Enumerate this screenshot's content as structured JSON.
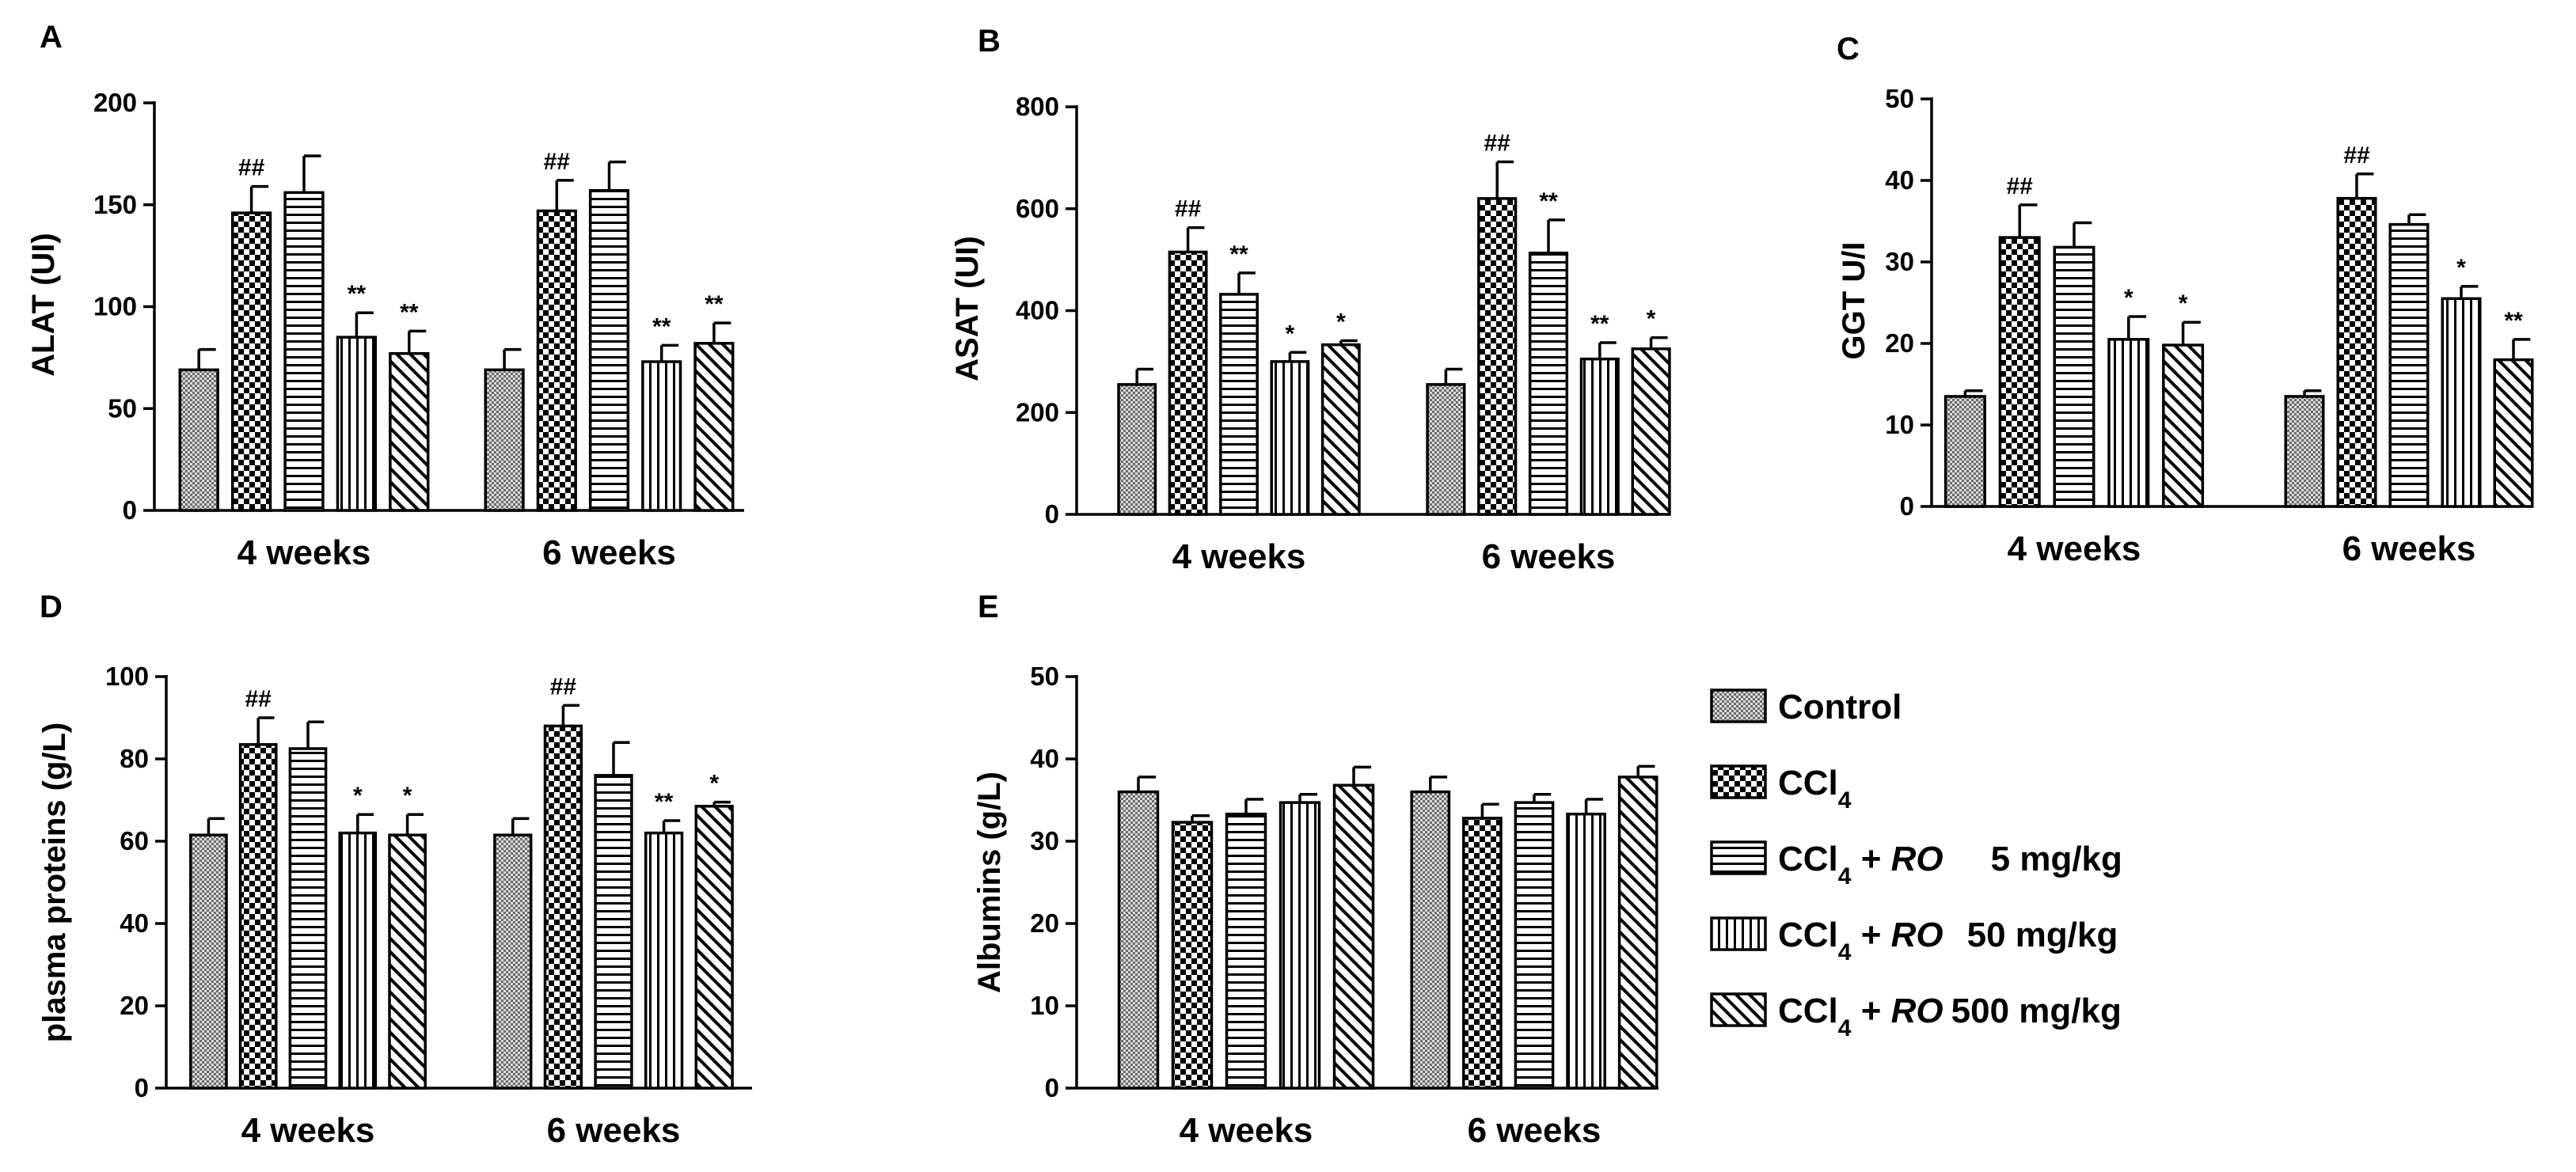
{
  "chart_data": [
    {
      "panel": "A",
      "type": "bar",
      "ylabel": "ALAT (UI)",
      "ylim": [
        0,
        200
      ],
      "yticks": [
        0,
        50,
        100,
        150,
        200
      ],
      "categories": [
        "4 weeks",
        "6 weeks"
      ],
      "series": [
        {
          "name": "Control",
          "values": [
            69,
            69
          ],
          "errors": [
            10,
            10
          ],
          "sig": [
            "",
            ""
          ]
        },
        {
          "name": "CCl4",
          "values": [
            146,
            147
          ],
          "errors": [
            13,
            15
          ],
          "sig": [
            "##",
            "##"
          ]
        },
        {
          "name": "CCl4 + RO 5 mg/kg",
          "values": [
            156,
            157
          ],
          "errors": [
            18,
            14
          ],
          "sig": [
            "",
            ""
          ]
        },
        {
          "name": "CCl4 + RO 50 mg/kg",
          "values": [
            85,
            73
          ],
          "errors": [
            12,
            8
          ],
          "sig": [
            "**",
            "**"
          ]
        },
        {
          "name": "CCl4 + RO 500 mg/kg",
          "values": [
            77,
            82
          ],
          "errors": [
            11,
            10
          ],
          "sig": [
            "**",
            "**"
          ]
        }
      ]
    },
    {
      "panel": "B",
      "type": "bar",
      "ylabel": "ASAT (UI)",
      "ylim": [
        0,
        800
      ],
      "yticks": [
        0,
        200,
        400,
        600,
        800
      ],
      "categories": [
        "4 weeks",
        "6 weeks"
      ],
      "series": [
        {
          "name": "Control",
          "values": [
            255,
            255
          ],
          "errors": [
            30,
            30
          ],
          "sig": [
            "",
            ""
          ]
        },
        {
          "name": "CCl4",
          "values": [
            515,
            620
          ],
          "errors": [
            48,
            72
          ],
          "sig": [
            "##",
            "##"
          ]
        },
        {
          "name": "CCl4 + RO 5 mg/kg",
          "values": [
            432,
            513
          ],
          "errors": [
            42,
            65
          ],
          "sig": [
            "**",
            "**"
          ]
        },
        {
          "name": "CCl4 + RO 50 mg/kg",
          "values": [
            300,
            305
          ],
          "errors": [
            18,
            32
          ],
          "sig": [
            "*",
            "**"
          ]
        },
        {
          "name": "CCl4 + RO 500 mg/kg",
          "values": [
            333,
            325
          ],
          "errors": [
            8,
            22
          ],
          "sig": [
            "*",
            "*"
          ]
        }
      ]
    },
    {
      "panel": "C",
      "type": "bar",
      "ylabel": "GGT U/I",
      "ylim": [
        0,
        50
      ],
      "yticks": [
        0,
        10,
        20,
        30,
        40,
        50
      ],
      "categories": [
        "4 weeks",
        "6 weeks"
      ],
      "series": [
        {
          "name": "Control",
          "values": [
            13.5,
            13.5
          ],
          "errors": [
            0.7,
            0.7
          ],
          "sig": [
            "",
            ""
          ]
        },
        {
          "name": "CCl4",
          "values": [
            33,
            37.8
          ],
          "errors": [
            4,
            3
          ],
          "sig": [
            "##",
            "##"
          ]
        },
        {
          "name": "CCl4 + RO 5 mg/kg",
          "values": [
            31.8,
            34.6
          ],
          "errors": [
            3,
            1.2
          ],
          "sig": [
            "",
            ""
          ]
        },
        {
          "name": "CCl4 + RO 50 mg/kg",
          "values": [
            20.5,
            25.5
          ],
          "errors": [
            2.8,
            1.5
          ],
          "sig": [
            "*",
            "*"
          ]
        },
        {
          "name": "CCl4 + RO 500 mg/kg",
          "values": [
            19.8,
            18
          ],
          "errors": [
            2.8,
            2.5
          ],
          "sig": [
            "*",
            "**"
          ]
        }
      ]
    },
    {
      "panel": "D",
      "type": "bar",
      "ylabel": "plasma proteins (g/L)",
      "ylim": [
        0,
        100
      ],
      "yticks": [
        0,
        20,
        40,
        60,
        80,
        100
      ],
      "categories": [
        "4 weeks",
        "6 weeks"
      ],
      "series": [
        {
          "name": "Control",
          "values": [
            61.5,
            61.5
          ],
          "errors": [
            4,
            4
          ],
          "sig": [
            "",
            ""
          ]
        },
        {
          "name": "CCl4",
          "values": [
            83.5,
            88
          ],
          "errors": [
            6.5,
            5
          ],
          "sig": [
            "##",
            "##"
          ]
        },
        {
          "name": "CCl4 + RO 5 mg/kg",
          "values": [
            82.5,
            76
          ],
          "errors": [
            6.5,
            8
          ],
          "sig": [
            "",
            ""
          ]
        },
        {
          "name": "CCl4 + RO 50 mg/kg",
          "values": [
            62,
            62
          ],
          "errors": [
            4.5,
            3
          ],
          "sig": [
            "*",
            "**"
          ]
        },
        {
          "name": "CCl4 + RO 500 mg/kg",
          "values": [
            61.5,
            68.5
          ],
          "errors": [
            5,
            1
          ],
          "sig": [
            "*",
            "*"
          ]
        }
      ]
    },
    {
      "panel": "E",
      "type": "bar",
      "ylabel": "Albumins (g/L)",
      "ylim": [
        0,
        50
      ],
      "yticks": [
        0,
        10,
        20,
        30,
        40,
        50
      ],
      "categories": [
        "4 weeks",
        "6 weeks"
      ],
      "series": [
        {
          "name": "Control",
          "values": [
            36,
            36
          ],
          "errors": [
            1.8,
            1.8
          ],
          "sig": [
            "",
            ""
          ]
        },
        {
          "name": "CCl4",
          "values": [
            32.3,
            32.8
          ],
          "errors": [
            0.8,
            1.7
          ],
          "sig": [
            "",
            ""
          ]
        },
        {
          "name": "CCl4 + RO 5 mg/kg",
          "values": [
            33.3,
            34.7
          ],
          "errors": [
            1.8,
            1
          ],
          "sig": [
            "",
            ""
          ]
        },
        {
          "name": "CCl4 + RO 50 mg/kg",
          "values": [
            34.7,
            33.3
          ],
          "errors": [
            1,
            1.8
          ],
          "sig": [
            "",
            ""
          ]
        },
        {
          "name": "CCl4 + RO 500 mg/kg",
          "values": [
            36.8,
            37.8
          ],
          "errors": [
            2.2,
            1.3
          ],
          "sig": [
            "",
            ""
          ]
        }
      ]
    }
  ],
  "legend": {
    "items": [
      {
        "pattern": "control",
        "base": "Control",
        "dose": ""
      },
      {
        "pattern": "ccl4",
        "base": "CCl",
        "sub": "4",
        "dose": ""
      },
      {
        "pattern": "ro5",
        "base": "CCl",
        "sub": "4",
        "plus": " + ",
        "ro": "RO",
        "dose": "5 mg/kg"
      },
      {
        "pattern": "ro50",
        "base": "CCl",
        "sub": "4",
        "plus": " + ",
        "ro": "RO",
        "dose": "50 mg/kg"
      },
      {
        "pattern": "ro500",
        "base": "CCl",
        "sub": "4",
        "plus": " + ",
        "ro": "RO",
        "dose": "500 mg/kg"
      }
    ]
  }
}
